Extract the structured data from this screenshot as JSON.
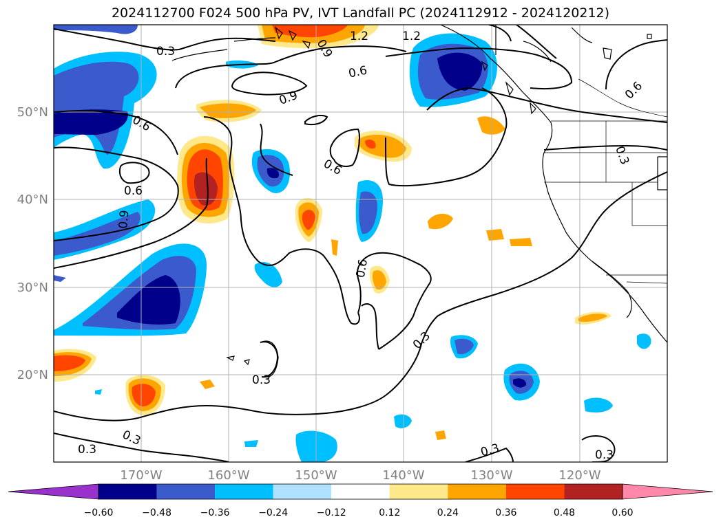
{
  "title": "2024112700 F024 500 hPa PV, IVT Landfall PC (2024112912 - 2024120212)",
  "lat_ticks": [
    "50°N",
    "40°N",
    "30°N",
    "20°N"
  ],
  "lon_ticks": [
    "170°W",
    "160°W",
    "150°W",
    "140°W",
    "130°W",
    "120°W"
  ],
  "colorbar": {
    "levels": [
      "−0.60",
      "−0.48",
      "−0.36",
      "−0.24",
      "−0.12",
      "0.12",
      "0.24",
      "0.36",
      "0.48",
      "0.60"
    ],
    "colors": [
      "#9932cc",
      "#00008b",
      "#3b5bcc",
      "#00bfff",
      "#b0e2ff",
      "#ffffff",
      "#ffe88a",
      "#ffa500",
      "#ff4500",
      "#b22222",
      "#ff88aa"
    ]
  },
  "contour_labels": [
    "0.3",
    "0.6",
    "0.9",
    "1.2",
    "0.6",
    "0.9",
    "0.6",
    "0.6",
    "0.9",
    "0.6",
    "0.3",
    "0.6",
    "0.3",
    "0.3",
    "0.3",
    "0.3",
    "0.3",
    "0.3",
    "1.2"
  ]
}
